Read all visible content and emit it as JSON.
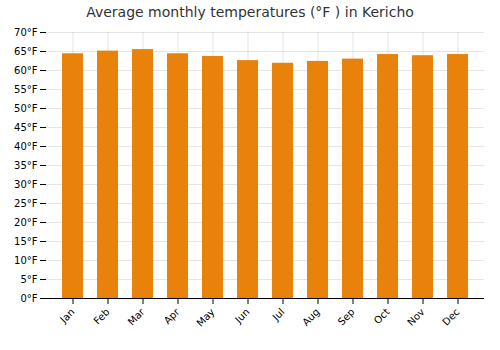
{
  "chart_data": {
    "type": "bar",
    "title": "Average monthly temperatures (°F ) in Kericho",
    "categories": [
      "Jan",
      "Feb",
      "Mar",
      "Apr",
      "May",
      "Jun",
      "Jul",
      "Aug",
      "Sep",
      "Oct",
      "Nov",
      "Dec"
    ],
    "values": [
      64.4,
      65.1,
      65.5,
      64.4,
      63.7,
      62.6,
      61.9,
      62.4,
      63.0,
      64.2,
      63.9,
      64.2
    ],
    "color": "#E8820A",
    "ylim": [
      0,
      70
    ],
    "yticks": [
      {
        "value": 0,
        "label": "0°F"
      },
      {
        "value": 5,
        "label": "5°F"
      },
      {
        "value": 10,
        "label": "10°F"
      },
      {
        "value": 15,
        "label": "15°F"
      },
      {
        "value": 20,
        "label": "20°F"
      },
      {
        "value": 25,
        "label": "25°F"
      },
      {
        "value": 30,
        "label": "30°F"
      },
      {
        "value": 35,
        "label": "35°F"
      },
      {
        "value": 40,
        "label": "40°F"
      },
      {
        "value": 45,
        "label": "45°F"
      },
      {
        "value": 50,
        "label": "50°F"
      },
      {
        "value": 55,
        "label": "55°F"
      },
      {
        "value": 60,
        "label": "60°F"
      },
      {
        "value": 65,
        "label": "65°F"
      },
      {
        "value": 70,
        "label": "70°F"
      }
    ],
    "grid": true
  }
}
